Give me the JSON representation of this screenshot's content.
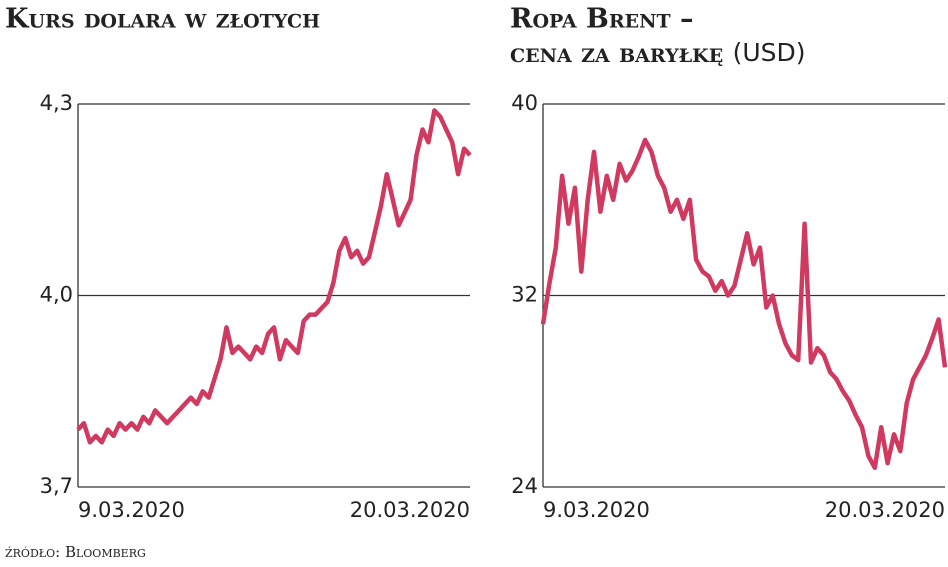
{
  "chart_data": [
    {
      "type": "line",
      "title": "Kurs dolara w złotych",
      "color": "#d13a60",
      "ylim": [
        3.7,
        4.3
      ],
      "yticks": [
        {
          "value": 3.7,
          "label": "3,7"
        },
        {
          "value": 4.0,
          "label": "4,0"
        },
        {
          "value": 4.3,
          "label": "4,3"
        }
      ],
      "grid": true,
      "categories": [
        "9.03.2020",
        null,
        null,
        null,
        null,
        null,
        null,
        null,
        null,
        null,
        null,
        null,
        null,
        null,
        null,
        null,
        null,
        null,
        null,
        null,
        null,
        null,
        null,
        null,
        null,
        null,
        null,
        null,
        null,
        null,
        null,
        null,
        null,
        null,
        null,
        null,
        null,
        null,
        null,
        null,
        null,
        null,
        null,
        null,
        null,
        null,
        null,
        null,
        null,
        null,
        null,
        null,
        null,
        null,
        null,
        null,
        null,
        null,
        null,
        null,
        null,
        null,
        null,
        null,
        null,
        null,
        "20.03.2020"
      ],
      "values": [
        3.79,
        3.8,
        3.77,
        3.78,
        3.77,
        3.79,
        3.78,
        3.8,
        3.79,
        3.8,
        3.79,
        3.81,
        3.8,
        3.82,
        3.81,
        3.8,
        3.81,
        3.82,
        3.83,
        3.84,
        3.83,
        3.85,
        3.84,
        3.87,
        3.9,
        3.95,
        3.91,
        3.92,
        3.91,
        3.9,
        3.92,
        3.91,
        3.94,
        3.95,
        3.9,
        3.93,
        3.92,
        3.91,
        3.96,
        3.97,
        3.97,
        3.98,
        3.99,
        4.02,
        4.07,
        4.09,
        4.06,
        4.07,
        4.05,
        4.06,
        4.1,
        4.14,
        4.19,
        4.15,
        4.11,
        4.13,
        4.15,
        4.22,
        4.26,
        4.24,
        4.29,
        4.28,
        4.26,
        4.24,
        4.19,
        4.23,
        4.22
      ]
    },
    {
      "type": "line",
      "title": "Ropa Brent –",
      "subtitle": "cena za baryłkę",
      "unit": "(USD)",
      "color": "#d13a60",
      "ylim": [
        24,
        40
      ],
      "yticks": [
        24,
        32,
        40
      ],
      "grid": true,
      "categories": [
        "9.03.2020",
        null,
        null,
        null,
        null,
        null,
        null,
        null,
        null,
        null,
        null,
        null,
        null,
        null,
        null,
        null,
        null,
        null,
        null,
        null,
        null,
        null,
        null,
        null,
        null,
        null,
        null,
        null,
        null,
        null,
        null,
        null,
        null,
        null,
        null,
        null,
        null,
        null,
        null,
        null,
        null,
        null,
        null,
        null,
        null,
        null,
        null,
        null,
        null,
        null,
        null,
        null,
        null,
        null,
        null,
        null,
        null,
        null,
        null,
        null,
        null,
        null,
        null,
        "20.03.2020"
      ],
      "values": [
        30.8,
        32.5,
        34,
        37,
        35,
        36.5,
        33,
        36,
        38,
        35.5,
        37,
        36,
        37.5,
        36.8,
        37.2,
        37.8,
        38.5,
        38,
        37,
        36.5,
        35.5,
        36,
        35.2,
        36,
        33.5,
        33,
        32.8,
        32.2,
        32.6,
        32,
        32.4,
        33.5,
        34.6,
        33.3,
        34,
        31.5,
        32,
        30.8,
        30,
        29.5,
        29.3,
        35,
        29.2,
        29.8,
        29.5,
        28.8,
        28.5,
        28,
        27.6,
        27,
        26.5,
        25.3,
        24.8,
        26.5,
        25,
        26.2,
        25.5,
        27.5,
        28.5,
        29,
        29.5,
        30.2,
        31,
        29
      ]
    }
  ],
  "source": "źródło: Bloomberg"
}
